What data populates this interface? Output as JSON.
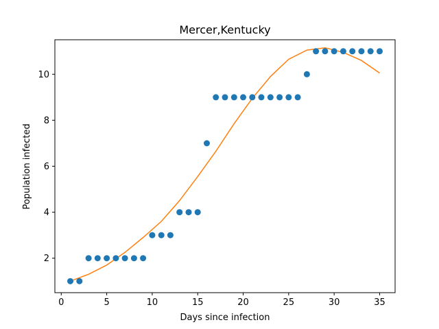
{
  "chart_data": {
    "type": "scatter",
    "title": "Mercer,Kentucky",
    "xlabel": "Days since infection",
    "ylabel": "Population infected",
    "xlim": [
      -0.7,
      36.7
    ],
    "ylim": [
      0.5,
      11.5
    ],
    "xticks": [
      0,
      5,
      10,
      15,
      20,
      25,
      30,
      35
    ],
    "yticks": [
      2,
      4,
      6,
      8,
      10
    ],
    "grid": false,
    "legend": "none",
    "series": [
      {
        "kind": "scatter",
        "color": "#1f77b4",
        "x": [
          1,
          2,
          3,
          4,
          5,
          6,
          7,
          8,
          9,
          10,
          11,
          12,
          13,
          14,
          15,
          16,
          17,
          18,
          19,
          20,
          21,
          22,
          23,
          24,
          25,
          26,
          27,
          28,
          29,
          30,
          31,
          32,
          33,
          34,
          35
        ],
        "y": [
          1,
          1,
          2,
          2,
          2,
          2,
          2,
          2,
          2,
          3,
          3,
          3,
          4,
          4,
          4,
          7,
          9,
          9,
          9,
          9,
          9,
          9,
          9,
          9,
          9,
          9,
          10,
          11,
          11,
          11,
          11,
          11,
          11,
          11,
          11
        ]
      },
      {
        "kind": "line",
        "color": "#ff7f0e",
        "x": [
          1,
          3,
          5,
          7,
          9,
          11,
          13,
          15,
          17,
          19,
          21,
          23,
          25,
          27,
          29,
          31,
          33,
          35
        ],
        "y": [
          1.0,
          1.3,
          1.7,
          2.25,
          2.9,
          3.6,
          4.5,
          5.55,
          6.65,
          7.85,
          8.95,
          9.9,
          10.65,
          11.05,
          11.15,
          10.95,
          10.6,
          10.05
        ]
      }
    ]
  }
}
